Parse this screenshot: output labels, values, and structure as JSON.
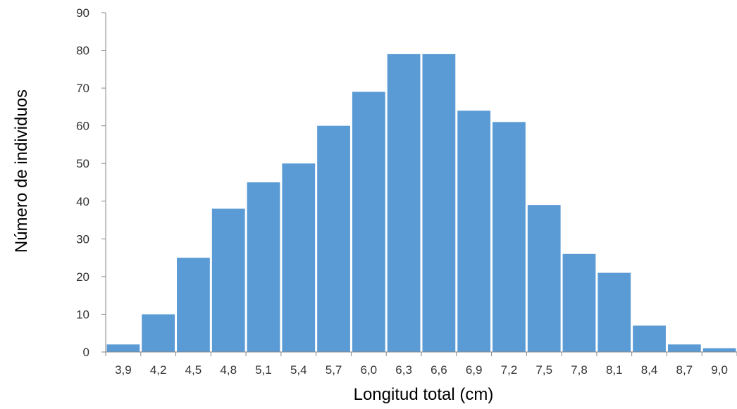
{
  "chart_data": {
    "type": "bar",
    "title": "",
    "xlabel": "Longitud total  (cm)",
    "ylabel": "Número de individuos",
    "categories": [
      "3,9",
      "4,2",
      "4,5",
      "4,8",
      "5,1",
      "5,4",
      "5,7",
      "6,0",
      "6,3",
      "6,6",
      "6,9",
      "7,2",
      "7,5",
      "7,8",
      "8,1",
      "8,4",
      "8,7",
      "9,0"
    ],
    "values": [
      2,
      10,
      25,
      38,
      45,
      50,
      60,
      69,
      79,
      79,
      64,
      61,
      39,
      26,
      21,
      7,
      2,
      1
    ],
    "ylim": [
      0,
      90
    ],
    "yticks": [
      0,
      10,
      20,
      30,
      40,
      50,
      60,
      70,
      80,
      90
    ],
    "grid": false,
    "legend": "none",
    "bar_color": "#5B9BD5",
    "axis_color": "#868686"
  }
}
